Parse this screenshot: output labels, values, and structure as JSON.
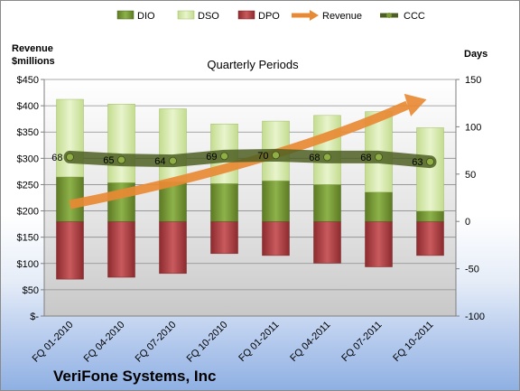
{
  "chart_data": {
    "type": "bar",
    "title": "Quarterly Periods",
    "company": "VeriFone Systems, Inc",
    "left_axis_label": [
      "Revenue",
      "$millions"
    ],
    "right_axis_label": "Days",
    "categories": [
      "FQ 01-2010",
      "FQ 04-2010",
      "FQ 07-2010",
      "FQ 10-2010",
      "FQ 01-2011",
      "FQ 04-2011",
      "FQ 07-2011",
      "FQ 10-2011"
    ],
    "left_ticks": [
      "$-",
      "$50",
      "$100",
      "$150",
      "$200",
      "$250",
      "$300",
      "$350",
      "$400",
      "$450"
    ],
    "right_ticks": [
      "-100",
      "-50",
      "0",
      "50",
      "100",
      "150"
    ],
    "left_ylim": [
      0,
      450
    ],
    "right_ylim": [
      -100,
      150
    ],
    "legend": [
      "DIO",
      "DSO",
      "DPO",
      "Revenue",
      "CCC"
    ],
    "colors": {
      "DIO": "#6f8f2d",
      "DSO": "#d3e6a6",
      "DPO": "#a63a3e",
      "Revenue": "#e88a34",
      "CCC": "#4d5f22"
    },
    "series": [
      {
        "name": "DIO",
        "values": [
          47,
          41,
          42,
          40,
          43,
          39,
          31,
          11
        ]
      },
      {
        "name": "DSO",
        "values": [
          82,
          83,
          77,
          63,
          63,
          73,
          85,
          88
        ]
      },
      {
        "name": "DPO",
        "values": [
          -61,
          -59,
          -55,
          -34,
          -36,
          -44,
          -48,
          -36
        ]
      },
      {
        "name": "CCC",
        "values": [
          68,
          65,
          64,
          69,
          70,
          68,
          68,
          63
        ]
      }
    ],
    "ccc_labels": [
      "68",
      "65",
      "64",
      "69",
      "70",
      "68",
      "68",
      "63"
    ],
    "revenue_trend": {
      "start": 212,
      "end": 412
    }
  }
}
